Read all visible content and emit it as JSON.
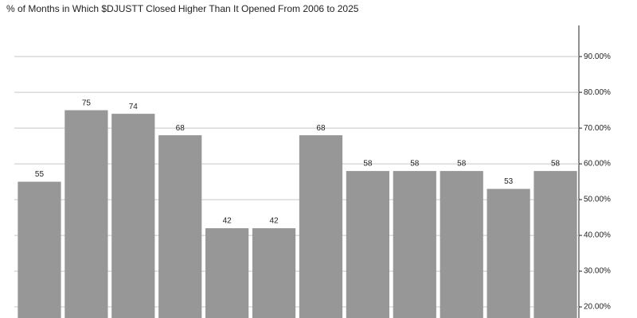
{
  "chart_data": {
    "type": "bar",
    "title": "% of Months in Which $DJUSTT Closed Higher Than It Opened From 2006 to 2025",
    "categories": [
      null,
      null,
      null,
      null,
      null,
      null,
      null,
      null,
      null,
      null,
      null,
      null
    ],
    "values": [
      55,
      75,
      74,
      68,
      42,
      42,
      68,
      58,
      58,
      58,
      53,
      58
    ],
    "color": "#979797",
    "ylim": [
      16.9,
      98.7
    ],
    "yticks": [
      {
        "value": 20,
        "label": "20.00%"
      },
      {
        "value": 30,
        "label": "30.00%"
      },
      {
        "value": 40,
        "label": "40.00%"
      },
      {
        "value": 50,
        "label": "50.00%"
      },
      {
        "value": 60,
        "label": "60.00%"
      },
      {
        "value": 70,
        "label": "70.00%"
      },
      {
        "value": 80,
        "label": "80.00%"
      },
      {
        "value": 90,
        "label": "90.00%"
      }
    ],
    "grid": true
  }
}
